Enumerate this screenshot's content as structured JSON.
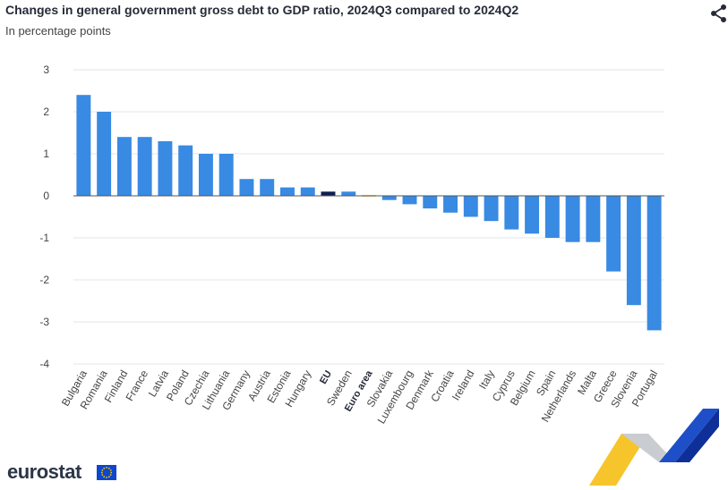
{
  "chart_data": {
    "type": "bar",
    "title": "Changes in general government gross debt to GDP ratio, 2024Q3 compared to 2024Q2",
    "subtitle": "In percentage points",
    "categories": [
      "Bulgaria",
      "Romania",
      "Finland",
      "France",
      "Latvia",
      "Poland",
      "Czechia",
      "Lithuania",
      "Germany",
      "Austria",
      "Estonia",
      "Hungary",
      "EU",
      "Sweden",
      "Euro area",
      "Slovakia",
      "Luxembourg",
      "Denmark",
      "Croatia",
      "Ireland",
      "Italy",
      "Cyprus",
      "Belgium",
      "Spain",
      "Netherlands",
      "Malta",
      "Greece",
      "Slovenia",
      "Portugal"
    ],
    "values": [
      2.4,
      2.0,
      1.4,
      1.4,
      1.3,
      1.2,
      1.0,
      1.0,
      0.4,
      0.4,
      0.2,
      0.2,
      0.1,
      0.1,
      0.0,
      -0.1,
      -0.2,
      -0.3,
      -0.4,
      -0.5,
      -0.6,
      -0.8,
      -0.9,
      -1.0,
      -1.1,
      -1.1,
      -1.8,
      -2.6,
      -3.2
    ],
    "highlight": [
      "EU",
      "Euro area"
    ],
    "ylim": [
      -4,
      3
    ],
    "yticks": [
      3,
      2,
      1,
      0,
      -1,
      -2,
      -3,
      -4
    ],
    "grid": true,
    "colors": {
      "bar": "#388ae2",
      "eu": "#0e1e4f",
      "euro_area": "#f2b100",
      "grid": "#e6e6e6",
      "axis": "#555555"
    }
  },
  "branding": {
    "logo_text": "eurostat"
  },
  "toolbar": {
    "share_icon": "share-icon"
  }
}
